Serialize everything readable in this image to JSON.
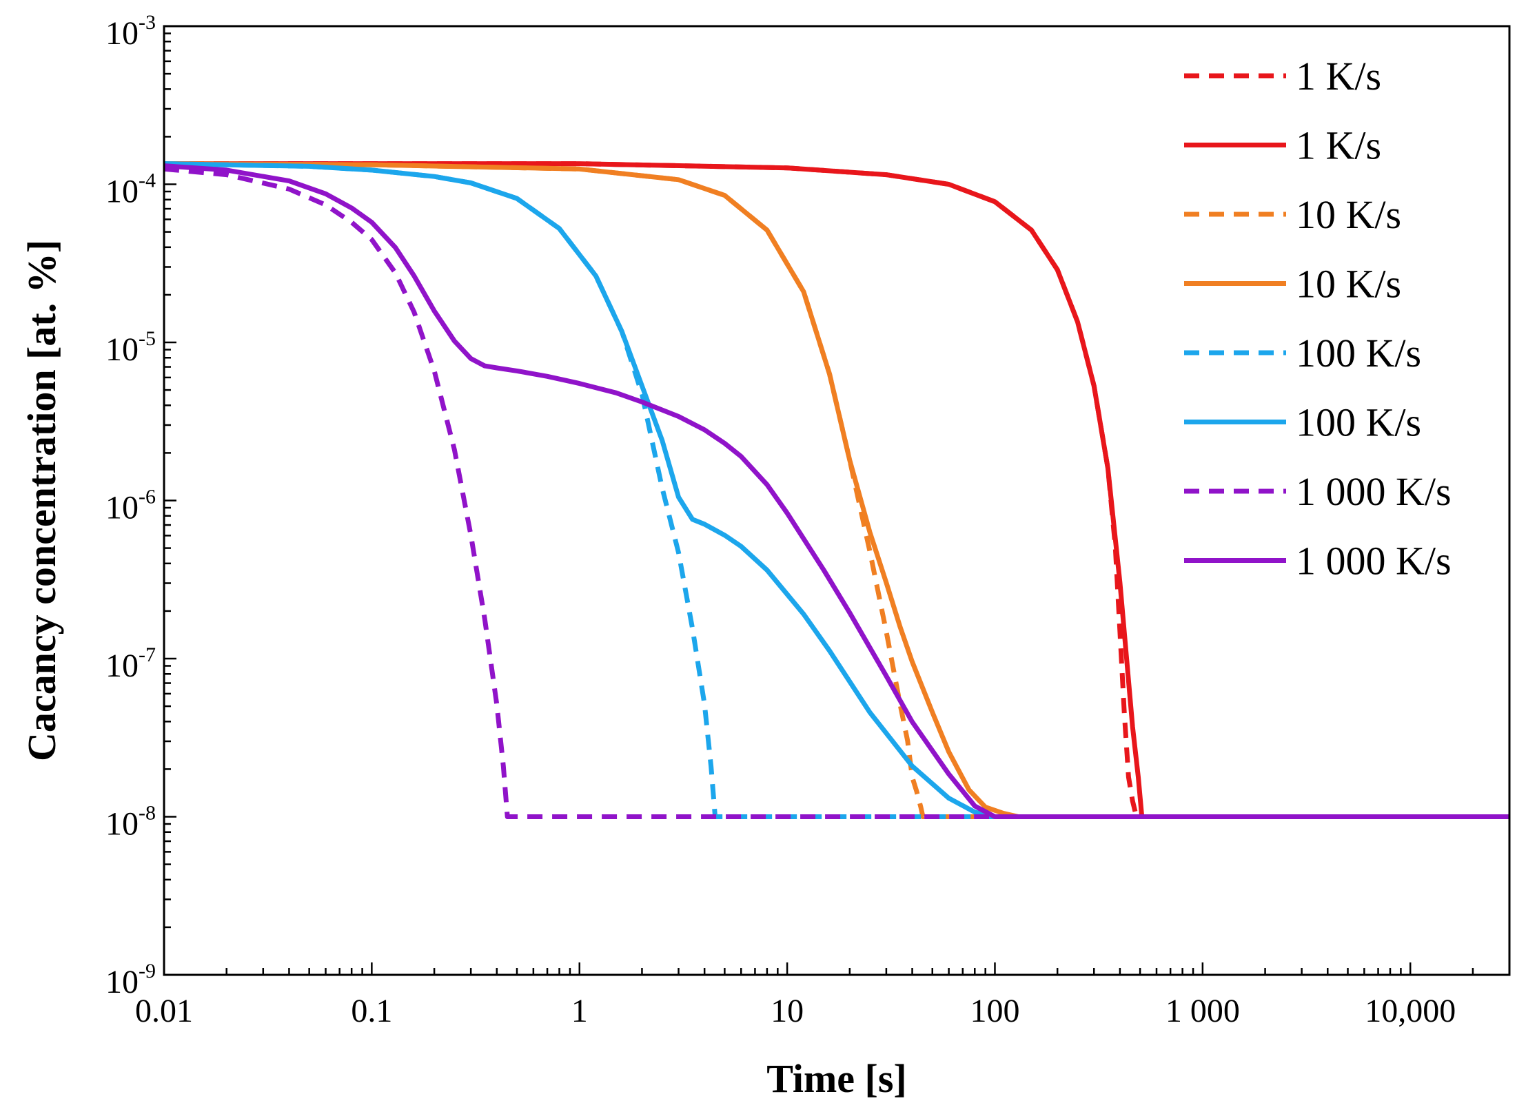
{
  "chart_data": {
    "type": "line",
    "xlabel": "Time [s]",
    "ylabel": "Cacancy concentration [at. %]",
    "xscale": "log",
    "yscale": "log",
    "xlim": [
      0.01,
      30000
    ],
    "ylim": [
      1e-09,
      0.001
    ],
    "x_ticks": [
      {
        "value": 0.01,
        "label": "0.01"
      },
      {
        "value": 0.1,
        "label": "0.1"
      },
      {
        "value": 1,
        "label": "1"
      },
      {
        "value": 10,
        "label": "10"
      },
      {
        "value": 100,
        "label": "100"
      },
      {
        "value": 1000,
        "label": "1 000"
      },
      {
        "value": 10000,
        "label": "10,000"
      }
    ],
    "y_ticks": [
      {
        "value": 0.001,
        "base": "10",
        "exp": "-3"
      },
      {
        "value": 0.0001,
        "base": "10",
        "exp": "-4"
      },
      {
        "value": 1e-05,
        "base": "10",
        "exp": "-5"
      },
      {
        "value": 1e-06,
        "base": "10",
        "exp": "-6"
      },
      {
        "value": 1e-07,
        "base": "10",
        "exp": "-7"
      },
      {
        "value": 1e-08,
        "base": "10",
        "exp": "-8"
      },
      {
        "value": 1e-09,
        "base": "10",
        "exp": "-9"
      }
    ],
    "legend_position": "top-right",
    "series": [
      {
        "name": "1 K/s",
        "color": "#e8161b",
        "style": "dashed",
        "x": [
          0.01,
          1,
          10,
          30,
          60,
          100,
          150,
          200,
          250,
          300,
          350,
          380,
          400,
          420,
          440,
          460,
          480,
          30000
        ],
        "y": [
          0.000135,
          0.000135,
          0.000127,
          0.000115,
          0.0001,
          7.76e-05,
          5.13e-05,
          2.88e-05,
          1.35e-05,
          5.3e-06,
          1.6e-06,
          5.1e-07,
          1.48e-07,
          4.47e-08,
          1.78e-08,
          1.26e-08,
          1e-08,
          1e-08
        ]
      },
      {
        "name": "1 K/s",
        "color": "#e8161b",
        "style": "solid",
        "x": [
          0.01,
          1,
          10,
          30,
          60,
          100,
          150,
          200,
          250,
          300,
          350,
          400,
          430,
          460,
          490,
          510,
          30000
        ],
        "y": [
          0.000135,
          0.000135,
          0.000127,
          0.000115,
          0.0001,
          7.76e-05,
          5.13e-05,
          2.88e-05,
          1.35e-05,
          5.3e-06,
          1.6e-06,
          3.02e-07,
          1.02e-07,
          3.72e-08,
          1.78e-08,
          1e-08,
          1e-08
        ]
      },
      {
        "name": "10 K/s",
        "color": "#f07f22",
        "style": "dashed",
        "x": [
          0.01,
          0.1,
          1,
          3,
          5,
          8,
          12,
          16,
          20,
          25,
          30,
          35,
          38,
          40,
          42,
          44,
          45,
          30000
        ],
        "y": [
          0.000135,
          0.000133,
          0.000125,
          0.000107,
          8.51e-05,
          5.13e-05,
          2.09e-05,
          6.3e-06,
          1.8e-06,
          4.78e-07,
          1.48e-07,
          5.1e-08,
          3.02e-08,
          1.78e-08,
          1.45e-08,
          1.15e-08,
          1e-08,
          1e-08
        ]
      },
      {
        "name": "10 K/s",
        "color": "#f07f22",
        "style": "solid",
        "x": [
          0.01,
          0.1,
          1,
          3,
          5,
          8,
          12,
          16,
          20,
          25,
          30,
          35,
          40,
          50,
          60,
          75,
          90,
          110,
          130,
          30000
        ],
        "y": [
          0.000135,
          0.000133,
          0.000125,
          0.000107,
          8.51e-05,
          5.13e-05,
          2.09e-05,
          6.3e-06,
          1.8e-06,
          6.31e-07,
          3.02e-07,
          1.58e-07,
          9.55e-08,
          4.57e-08,
          2.57e-08,
          1.48e-08,
          1.15e-08,
          1.05e-08,
          1e-08,
          1e-08
        ]
      },
      {
        "name": "100 K/s",
        "color": "#1ca6ec",
        "style": "dashed",
        "x": [
          0.01,
          0.05,
          0.1,
          0.2,
          0.3,
          0.5,
          0.8,
          1.2,
          1.6,
          2,
          2.5,
          3,
          3.5,
          4,
          4.3,
          4.5,
          30000
        ],
        "y": [
          0.000135,
          0.00013,
          0.000123,
          0.000112,
          0.000102,
          8.13e-05,
          5.25e-05,
          2.63e-05,
          1.17e-05,
          4.7e-06,
          1.2e-06,
          4.68e-07,
          1.55e-07,
          5.13e-08,
          2.09e-08,
          1e-08,
          1e-08
        ]
      },
      {
        "name": "100 K/s",
        "color": "#1ca6ec",
        "style": "solid",
        "x": [
          0.01,
          0.05,
          0.1,
          0.2,
          0.3,
          0.5,
          0.8,
          1.2,
          1.6,
          2,
          2.5,
          3,
          3.5,
          4,
          5,
          6,
          8,
          12,
          16,
          25,
          40,
          60,
          80,
          100,
          30000
        ],
        "y": [
          0.000135,
          0.00013,
          0.000123,
          0.000112,
          0.000102,
          8.13e-05,
          5.25e-05,
          2.63e-05,
          1.17e-05,
          5.3e-06,
          2.4e-06,
          1.05e-06,
          7.6e-07,
          7.08e-07,
          6.03e-07,
          5.13e-07,
          3.63e-07,
          1.91e-07,
          1.12e-07,
          4.57e-08,
          2.09e-08,
          1.31e-08,
          1.07e-08,
          1e-08,
          1e-08
        ]
      },
      {
        "name": "1 000 K/s",
        "color": "#9013c9",
        "style": "dashed",
        "x": [
          0.01,
          0.02,
          0.04,
          0.06,
          0.08,
          0.1,
          0.13,
          0.16,
          0.2,
          0.25,
          0.3,
          0.35,
          0.4,
          0.43,
          0.45,
          30000
        ],
        "y": [
          0.000125,
          0.000115,
          9.33e-05,
          7.41e-05,
          5.75e-05,
          4.47e-05,
          2.75e-05,
          1.55e-05,
          6.6e-06,
          2.1e-06,
          6.03e-07,
          1.78e-07,
          5.13e-08,
          2.09e-08,
          1e-08,
          1e-08
        ]
      },
      {
        "name": "1 000 K/s",
        "color": "#9013c9",
        "style": "solid",
        "x": [
          0.01,
          0.02,
          0.04,
          0.06,
          0.08,
          0.1,
          0.13,
          0.16,
          0.2,
          0.25,
          0.3,
          0.35,
          0.4,
          0.5,
          0.7,
          1,
          1.5,
          2,
          3,
          4,
          5,
          6,
          8,
          10,
          15,
          20,
          30,
          40,
          60,
          80,
          100,
          30000
        ],
        "y": [
          0.000131,
          0.000123,
          0.000105,
          8.71e-05,
          7.08e-05,
          5.75e-05,
          3.98e-05,
          2.63e-05,
          1.58e-05,
          1.02e-05,
          7.9e-06,
          7.1e-06,
          6.9e-06,
          6.6e-06,
          6.1e-06,
          5.5e-06,
          4.8e-06,
          4.2e-06,
          3.4e-06,
          2.8e-06,
          2.3e-06,
          1.9e-06,
          1.26e-06,
          8.32e-07,
          3.63e-07,
          1.95e-07,
          7.76e-08,
          3.98e-08,
          1.86e-08,
          1.17e-08,
          1e-08,
          1e-08
        ]
      }
    ]
  }
}
